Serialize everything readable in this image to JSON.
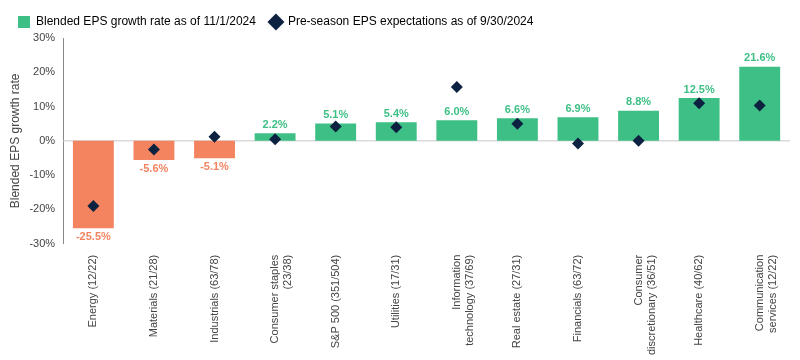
{
  "chart_data": {
    "type": "bar",
    "y_label": "Blended EPS growth rate",
    "categories": [
      "Energy (12/22)",
      "Materials (21/28)",
      "Industrials (63/78)",
      "Consumer staples (23/38)",
      "S&P 500 (351/504)",
      "Utilities (17/31)",
      "Information technology (37/69)",
      "Real estate (27/31)",
      "Financials (63/72)",
      "Consumer discretionary (36/51)",
      "Healthcare (40/62)",
      "Communication services (12/22)"
    ],
    "series": [
      {
        "name": "Blended EPS growth rate as of 11/1/2024",
        "type": "bar",
        "color": "#3dbf85",
        "colors": [
          "#f4845f",
          "#f4845f",
          "#f4845f",
          "#3dbf85",
          "#3dbf85",
          "#3dbf85",
          "#3dbf85",
          "#3dbf85",
          "#3dbf85",
          "#3dbf85",
          "#3dbf85",
          "#3dbf85"
        ],
        "values": [
          -25.5,
          -5.6,
          -5.1,
          2.2,
          5.1,
          5.4,
          6.0,
          6.6,
          6.9,
          8.8,
          12.5,
          21.6
        ],
        "value_labels": [
          "-25.5%",
          "-5.6%",
          "-5.1%",
          "2.2%",
          "5.1%",
          "5.4%",
          "6.0%",
          "6.6%",
          "6.9%",
          "8.8%",
          "12.5%",
          "21.6%"
        ]
      },
      {
        "name": "Pre-season EPS expectations as of 9/30/2024",
        "type": "scatter",
        "marker": "diamond",
        "color": "#0d2240",
        "values": [
          -19.0,
          -2.5,
          1.2,
          0.5,
          4.2,
          4.0,
          15.7,
          5.0,
          -0.8,
          0.0,
          11.0,
          10.3
        ]
      }
    ],
    "ylim": [
      -30,
      30
    ],
    "yticks": [
      {
        "value": -30,
        "label": "-30%"
      },
      {
        "value": -20,
        "label": "-20%"
      },
      {
        "value": -10,
        "label": "-10%"
      },
      {
        "value": 0,
        "label": "0%"
      },
      {
        "value": 10,
        "label": "10%"
      },
      {
        "value": 20,
        "label": "20%"
      },
      {
        "value": 30,
        "label": "30%"
      }
    ],
    "grid": false,
    "legend": "top",
    "data_labels": true
  }
}
